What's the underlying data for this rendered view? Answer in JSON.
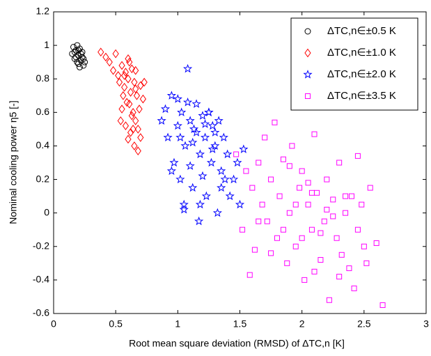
{
  "chart_data": {
    "type": "scatter",
    "xlabel": "Root mean square deviation (RMSD) of ΔTC,n [K]",
    "ylabel": "Nominal cooling power η5 [-]",
    "xlim": [
      0,
      3
    ],
    "ylim": [
      -0.6,
      1.2
    ],
    "xticks": [
      0,
      0.5,
      1,
      1.5,
      2,
      2.5,
      3
    ],
    "yticks": [
      -0.6,
      -0.4,
      -0.2,
      0,
      0.2,
      0.4,
      0.6,
      0.8,
      1,
      1.2
    ],
    "grid": false,
    "legend": "upper right",
    "series": [
      {
        "name": "ΔTC,n∈±0.5 K",
        "color": "#000000",
        "marker": "circle",
        "x": [
          0.15,
          0.17,
          0.18,
          0.19,
          0.2,
          0.21,
          0.22,
          0.23,
          0.24,
          0.16,
          0.18,
          0.2,
          0.22,
          0.25,
          0.19,
          0.21,
          0.17,
          0.23,
          0.2,
          0.24
        ],
        "values": [
          0.95,
          0.92,
          0.97,
          0.9,
          0.94,
          0.98,
          0.91,
          0.96,
          0.88,
          0.99,
          0.93,
          0.89,
          0.95,
          0.9,
          1.0,
          0.87,
          0.96,
          0.93,
          0.97,
          0.92
        ]
      },
      {
        "name": "ΔTC,n∈±1.0 K",
        "color": "#ff0000",
        "marker": "diamond",
        "x": [
          0.38,
          0.42,
          0.45,
          0.48,
          0.5,
          0.52,
          0.53,
          0.55,
          0.56,
          0.57,
          0.58,
          0.6,
          0.6,
          0.61,
          0.62,
          0.63,
          0.64,
          0.65,
          0.66,
          0.67,
          0.68,
          0.7,
          0.72,
          0.55,
          0.58,
          0.62,
          0.65,
          0.68,
          0.6,
          0.63,
          0.66,
          0.69,
          0.57,
          0.59,
          0.64,
          0.7,
          0.66,
          0.61,
          0.54,
          0.73
        ],
        "values": [
          0.96,
          0.93,
          0.9,
          0.85,
          0.95,
          0.82,
          0.78,
          0.88,
          0.7,
          0.75,
          0.84,
          0.92,
          0.8,
          0.65,
          0.72,
          0.86,
          0.6,
          0.78,
          0.55,
          0.7,
          0.5,
          0.45,
          0.68,
          0.62,
          0.52,
          0.48,
          0.4,
          0.37,
          0.44,
          0.58,
          0.74,
          0.62,
          0.82,
          0.66,
          0.5,
          0.76,
          0.85,
          0.9,
          0.55,
          0.78
        ]
      },
      {
        "name": "ΔTC,n∈±2.0 K",
        "color": "#0000ff",
        "marker": "star",
        "x": [
          0.87,
          0.9,
          0.92,
          0.95,
          0.97,
          1.0,
          1.02,
          1.03,
          1.05,
          1.06,
          1.08,
          1.1,
          1.12,
          1.13,
          1.15,
          1.17,
          1.18,
          1.2,
          1.22,
          1.23,
          1.25,
          1.27,
          1.28,
          1.3,
          1.32,
          1.33,
          1.35,
          1.37,
          1.4,
          1.42,
          1.45,
          1.48,
          1.5,
          1.53,
          1.0,
          1.05,
          1.1,
          1.15,
          1.2,
          1.25,
          1.3,
          1.35,
          0.95,
          1.08,
          1.18,
          1.28,
          1.38,
          1.12,
          1.22,
          1.02
        ],
        "values": [
          0.55,
          0.62,
          0.45,
          0.7,
          0.3,
          0.52,
          0.2,
          0.6,
          0.05,
          0.4,
          0.86,
          0.55,
          0.15,
          0.5,
          0.65,
          -0.05,
          0.35,
          0.58,
          0.45,
          0.1,
          0.6,
          0.3,
          0.52,
          0.4,
          0.0,
          0.55,
          0.25,
          0.45,
          0.35,
          0.1,
          0.2,
          0.3,
          0.05,
          0.38,
          0.68,
          0.02,
          0.28,
          0.48,
          0.22,
          0.6,
          0.48,
          0.15,
          0.25,
          0.66,
          0.05,
          0.38,
          0.2,
          0.42,
          0.53,
          0.45
        ]
      },
      {
        "name": "ΔTC,n∈±3.5 K",
        "color": "#ff00ff",
        "marker": "square",
        "x": [
          1.47,
          1.52,
          1.55,
          1.58,
          1.6,
          1.62,
          1.65,
          1.68,
          1.7,
          1.72,
          1.75,
          1.78,
          1.8,
          1.82,
          1.85,
          1.88,
          1.9,
          1.92,
          1.95,
          1.98,
          2.0,
          2.02,
          2.05,
          2.08,
          2.1,
          2.12,
          2.15,
          2.18,
          2.2,
          2.22,
          2.25,
          2.28,
          2.3,
          2.32,
          2.35,
          2.38,
          2.4,
          2.42,
          2.45,
          2.48,
          2.5,
          2.52,
          2.55,
          2.6,
          2.65,
          1.85,
          1.95,
          2.05,
          2.15,
          2.25,
          2.35,
          2.0,
          2.1,
          2.2,
          1.75,
          1.9,
          2.3,
          2.45,
          1.65,
          2.08
        ],
        "values": [
          0.35,
          -0.1,
          0.25,
          -0.37,
          0.15,
          -0.22,
          0.3,
          0.05,
          0.45,
          -0.05,
          0.2,
          0.54,
          -0.15,
          0.1,
          0.32,
          -0.3,
          0.0,
          0.4,
          -0.2,
          0.15,
          0.25,
          -0.4,
          0.05,
          -0.1,
          0.47,
          0.12,
          -0.28,
          -0.05,
          0.2,
          -0.52,
          0.08,
          -0.15,
          0.3,
          -0.25,
          0.0,
          -0.33,
          0.1,
          -0.45,
          -0.1,
          0.05,
          -0.2,
          -0.3,
          0.15,
          -0.18,
          -0.55,
          -0.1,
          0.05,
          0.18,
          -0.12,
          -0.02,
          0.1,
          -0.15,
          -0.35,
          0.02,
          -0.24,
          0.28,
          -0.38,
          0.34,
          -0.05,
          0.12
        ]
      }
    ]
  }
}
